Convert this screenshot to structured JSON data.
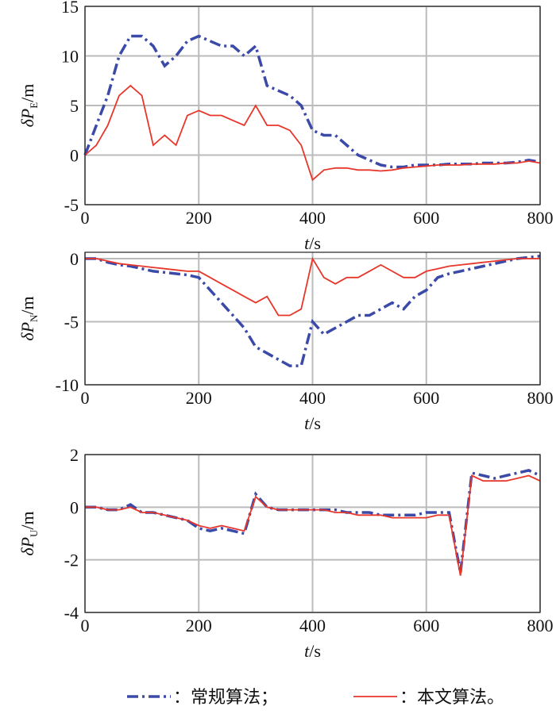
{
  "chart_data": [
    {
      "type": "line",
      "ylabel": [
        "δP",
        "E",
        "/m"
      ],
      "xlabel": [
        "t",
        "/s"
      ],
      "x": [
        0,
        20,
        40,
        60,
        80,
        100,
        120,
        140,
        160,
        180,
        200,
        220,
        240,
        260,
        280,
        300,
        320,
        340,
        360,
        380,
        400,
        420,
        440,
        460,
        480,
        500,
        520,
        540,
        560,
        580,
        600,
        620,
        640,
        660,
        680,
        700,
        720,
        740,
        760,
        780,
        800
      ],
      "xlim": [
        0,
        800
      ],
      "xticks": [
        0,
        200,
        400,
        600,
        800
      ],
      "ylim": [
        -5,
        15
      ],
      "yticks": [
        -5,
        0,
        5,
        10,
        15
      ],
      "grid": true,
      "series": [
        {
          "name": "：常规算法；",
          "color": "#3b4aa8",
          "values": [
            0,
            3,
            6,
            10,
            12,
            12,
            11,
            9,
            10,
            11.5,
            12,
            11.5,
            11,
            11,
            10,
            11,
            7,
            6.5,
            6,
            5,
            2.5,
            2,
            2,
            1,
            0,
            -0.5,
            -1,
            -1.2,
            -1.2,
            -1,
            -1,
            -1,
            -0.9,
            -0.9,
            -0.9,
            -0.8,
            -0.8,
            -0.8,
            -0.7,
            -0.5,
            -0.7
          ]
        },
        {
          "name": "：本文算法。",
          "color": "#e8362a",
          "values": [
            0,
            1,
            3,
            6,
            7,
            6,
            1,
            2,
            1,
            4,
            4.5,
            4,
            4,
            3.5,
            3,
            5,
            3,
            3,
            2.5,
            1,
            -2.5,
            -1.5,
            -1.3,
            -1.3,
            -1.5,
            -1.5,
            -1.6,
            -1.5,
            -1.3,
            -1.2,
            -1.1,
            -1,
            -1,
            -1,
            -0.9,
            -0.9,
            -0.9,
            -0.8,
            -0.8,
            -0.6,
            -0.8
          ]
        }
      ]
    },
    {
      "type": "line",
      "ylabel": [
        "δP",
        "N",
        "/m"
      ],
      "xlabel": [
        "t",
        "/s"
      ],
      "x": [
        0,
        20,
        40,
        60,
        80,
        100,
        120,
        140,
        160,
        180,
        200,
        220,
        240,
        260,
        280,
        300,
        320,
        340,
        360,
        380,
        400,
        420,
        440,
        460,
        480,
        500,
        520,
        540,
        560,
        580,
        600,
        620,
        640,
        660,
        680,
        700,
        720,
        740,
        760,
        780,
        800
      ],
      "xlim": [
        0,
        800
      ],
      "xticks": [
        0,
        200,
        400,
        600,
        800
      ],
      "ylim": [
        -10,
        0.5
      ],
      "yticks": [
        -10,
        -5,
        0
      ],
      "grid": true,
      "series": [
        {
          "name": "：常规算法；",
          "color": "#3b4aa8",
          "values": [
            0,
            0,
            -0.3,
            -0.5,
            -0.6,
            -0.8,
            -1,
            -1.1,
            -1.2,
            -1.3,
            -1.5,
            -2.5,
            -3.5,
            -4.5,
            -5.5,
            -7,
            -7.5,
            -8,
            -8.5,
            -8.5,
            -5,
            -6,
            -5.5,
            -5,
            -4.5,
            -4.5,
            -4,
            -3.5,
            -4,
            -3,
            -2.5,
            -1.5,
            -1.2,
            -1,
            -0.8,
            -0.6,
            -0.4,
            -0.2,
            0,
            0.1,
            0.2
          ]
        },
        {
          "name": "：本文算法。",
          "color": "#e8362a",
          "values": [
            0,
            0,
            -0.2,
            -0.4,
            -0.5,
            -0.6,
            -0.7,
            -0.8,
            -0.9,
            -1,
            -1,
            -1.5,
            -2,
            -2.5,
            -3,
            -3.5,
            -3,
            -4.5,
            -4.5,
            -4,
            0,
            -1.5,
            -2,
            -1.5,
            -1.5,
            -1,
            -0.5,
            -1,
            -1.5,
            -1.5,
            -1,
            -0.8,
            -0.6,
            -0.5,
            -0.4,
            -0.3,
            -0.2,
            -0.1,
            0,
            0,
            0
          ]
        }
      ]
    },
    {
      "type": "line",
      "ylabel": [
        "δP",
        "U",
        "/m"
      ],
      "xlabel": [
        "t",
        "/s"
      ],
      "x": [
        0,
        20,
        40,
        60,
        80,
        100,
        120,
        140,
        160,
        180,
        200,
        220,
        240,
        260,
        280,
        300,
        320,
        340,
        360,
        380,
        400,
        420,
        440,
        460,
        480,
        500,
        520,
        540,
        560,
        580,
        600,
        620,
        640,
        660,
        680,
        700,
        720,
        740,
        760,
        780,
        800
      ],
      "xlim": [
        0,
        800
      ],
      "xticks": [
        0,
        200,
        400,
        600,
        800
      ],
      "ylim": [
        -4,
        2
      ],
      "yticks": [
        -4,
        -2,
        0,
        2
      ],
      "grid": true,
      "series": [
        {
          "name": "：常规算法；",
          "color": "#3b4aa8",
          "values": [
            0,
            0,
            -0.1,
            -0.1,
            0.1,
            -0.2,
            -0.2,
            -0.3,
            -0.4,
            -0.5,
            -0.8,
            -0.9,
            -0.8,
            -0.9,
            -1,
            0.5,
            0,
            -0.1,
            -0.1,
            -0.1,
            -0.1,
            -0.1,
            -0.1,
            -0.2,
            -0.2,
            -0.2,
            -0.3,
            -0.3,
            -0.3,
            -0.3,
            -0.2,
            -0.2,
            -0.2,
            -2.5,
            1.3,
            1.2,
            1.1,
            1.2,
            1.3,
            1.4,
            1.2
          ]
        },
        {
          "name": "：本文算法。",
          "color": "#e8362a",
          "values": [
            0,
            0,
            -0.1,
            -0.1,
            0,
            -0.2,
            -0.2,
            -0.3,
            -0.4,
            -0.5,
            -0.7,
            -0.8,
            -0.7,
            -0.8,
            -0.9,
            0.4,
            0,
            -0.1,
            -0.1,
            -0.1,
            -0.1,
            -0.1,
            -0.2,
            -0.2,
            -0.3,
            -0.3,
            -0.3,
            -0.4,
            -0.4,
            -0.4,
            -0.4,
            -0.3,
            -0.3,
            -2.6,
            1.2,
            1,
            1,
            1,
            1.1,
            1.2,
            1
          ]
        }
      ]
    }
  ]
}
